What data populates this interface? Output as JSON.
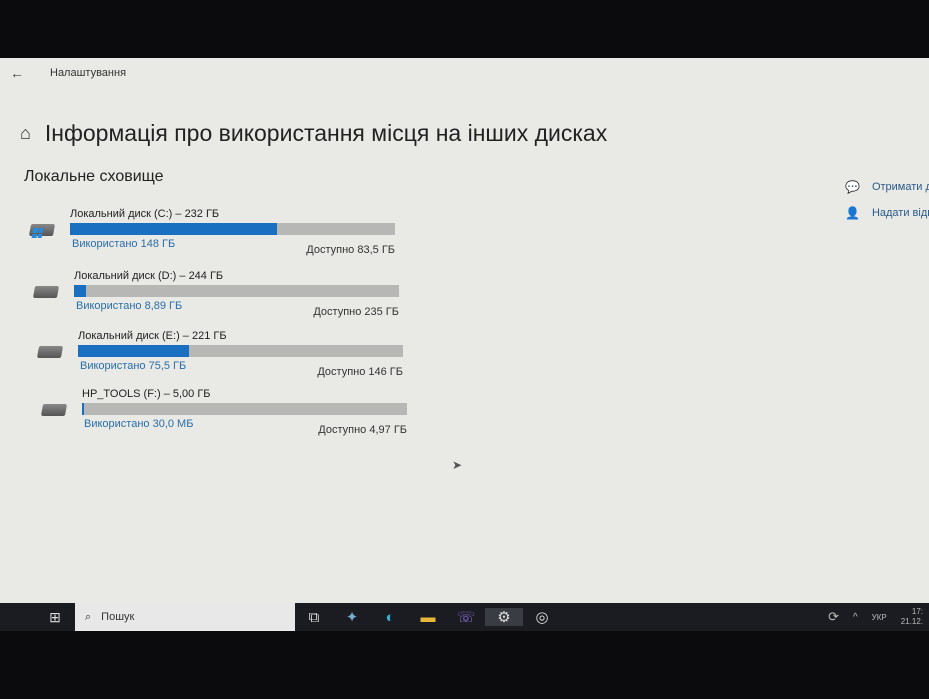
{
  "window": {
    "title": "Налаштування",
    "back_icon": "arrow-left-icon"
  },
  "page": {
    "title": "Інформація про використання місця на інших дисках",
    "home_icon": "home-icon"
  },
  "section": "Локальне сховище",
  "accent": "#1a6fc0",
  "disks": [
    {
      "name": "Локальний диск (C:) – 232 ГБ",
      "used": "Використано 148 ГБ",
      "free": "Доступно 83,5 ГБ",
      "percent_used": 63.8,
      "system": true
    },
    {
      "name": "Локальний диск (D:) – 244 ГБ",
      "used": "Використано 8,89 ГБ",
      "free": "Доступно 235 ГБ",
      "percent_used": 3.6,
      "system": false
    },
    {
      "name": "Локальний диск (E:) – 221 ГБ",
      "used": "Використано 75,5 ГБ",
      "free": "Доступно 146 ГБ",
      "percent_used": 34.2,
      "system": false
    },
    {
      "name": "HP_TOOLS (F:) – 5,00 ГБ",
      "used": "Використано 30,0 МБ",
      "free": "Доступно 4,97 ГБ",
      "percent_used": 0.6,
      "system": false
    }
  ],
  "side_links": [
    {
      "label": "Отримати д",
      "icon": "help-chat-icon"
    },
    {
      "label": "Надати відг",
      "icon": "feedback-icon"
    }
  ],
  "taskbar": {
    "search_placeholder": "Пошук",
    "language": "УКР",
    "time": "17:",
    "date": "21.12."
  }
}
